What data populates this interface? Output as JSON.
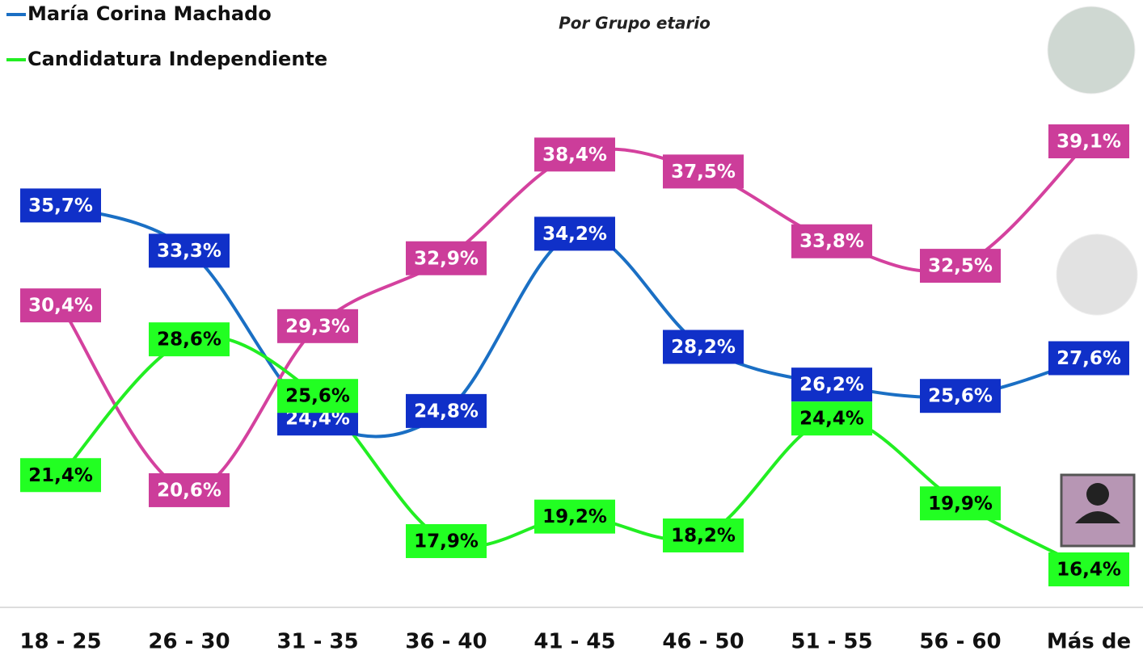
{
  "chart_data": {
    "type": "line",
    "subtitle": "Por Grupo etario",
    "categories": [
      "18 - 25",
      "26 - 30",
      "31 - 35",
      "36 - 40",
      "41 - 45",
      "46 - 50",
      "51 - 55",
      "56 - 60",
      "Más de"
    ],
    "series": [
      {
        "name": "María Corina Machado",
        "color": "#1a6fc4",
        "values": [
          35.7,
          33.3,
          24.4,
          24.8,
          34.2,
          28.2,
          26.2,
          25.6,
          27.6
        ],
        "value_labels": [
          "35,7%",
          "33,3%",
          "24,4%",
          "24,8%",
          "34,2%",
          "28,2%",
          "26,2%",
          "25,6%",
          "27,6%"
        ]
      },
      {
        "color": "#d4419e",
        "values": [
          30.4,
          20.6,
          29.3,
          32.9,
          38.4,
          37.5,
          33.8,
          32.5,
          39.1
        ],
        "value_labels": [
          "30,4%",
          "20,6%",
          "29,3%",
          "32,9%",
          "38,4%",
          "37,5%",
          "33,8%",
          "32,5%",
          "39,1%"
        ]
      },
      {
        "name": "Candidatura Independiente",
        "color": "#22ee22",
        "values": [
          21.4,
          28.6,
          25.6,
          17.9,
          19.2,
          18.2,
          24.4,
          19.9,
          16.4
        ],
        "value_labels": [
          "21,4%",
          "28,6%",
          "25,6%",
          "17,9%",
          "19,2%",
          "18,2%",
          "24,4%",
          "19,9%",
          "16,4%"
        ]
      }
    ]
  }
}
